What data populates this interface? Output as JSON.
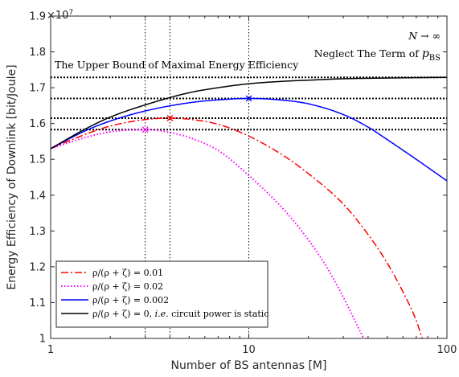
{
  "chart_data": {
    "type": "line",
    "xlabel": "Number of BS antennas [M]",
    "ylabel": "Energy Efficiency of Downlink [bit/Joule]",
    "xscale": "log",
    "xlim": [
      1,
      100
    ],
    "ylim": [
      1.0,
      1.9
    ],
    "y_multiplier_label": "×10",
    "y_multiplier_exp": "7",
    "xticks": [
      1,
      10,
      100
    ],
    "xtick_labels": [
      "1",
      "10",
      "100"
    ],
    "yticks": [
      1.0,
      1.1,
      1.2,
      1.3,
      1.4,
      1.5,
      1.6,
      1.7,
      1.8,
      1.9
    ],
    "ytick_labels": [
      "1",
      "1.1",
      "1.2",
      "1.3",
      "1.4",
      "1.5",
      "1.6",
      "1.7",
      "1.8",
      "1.9"
    ],
    "grid": false,
    "legend_position": "bottom-left",
    "series": [
      {
        "name": "ρ/(ρ + ζ) = 0.01",
        "color": "#ff0000",
        "style": "dashdot",
        "peak": {
          "x": 4,
          "y": 1.615
        },
        "x": [
          1,
          1.5,
          2,
          3,
          4,
          5,
          7,
          10,
          15,
          20,
          30,
          40,
          50,
          60,
          70,
          75
        ],
        "y": [
          1.53,
          1.57,
          1.593,
          1.611,
          1.615,
          1.612,
          1.598,
          1.565,
          1.51,
          1.46,
          1.375,
          1.29,
          1.21,
          1.13,
          1.05,
          1.0
        ]
      },
      {
        "name": "ρ/(ρ + ζ) = 0.02",
        "color": "#ff00ff",
        "style": "dotted",
        "peak": {
          "x": 3,
          "y": 1.583
        },
        "x": [
          1,
          1.5,
          2,
          3,
          4,
          5,
          7,
          10,
          15,
          20,
          25,
          30,
          35,
          38
        ],
        "y": [
          1.53,
          1.561,
          1.577,
          1.583,
          1.575,
          1.561,
          1.525,
          1.455,
          1.36,
          1.275,
          1.195,
          1.115,
          1.04,
          1.0
        ]
      },
      {
        "name": "ρ/(ρ + ζ) = 0.002",
        "color": "#0000ff",
        "style": "solid",
        "peak": {
          "x": 10,
          "y": 1.67
        },
        "x": [
          1,
          1.5,
          2,
          3,
          5,
          7,
          10,
          15,
          20,
          30,
          40,
          50,
          70,
          100
        ],
        "y": [
          1.53,
          1.58,
          1.607,
          1.635,
          1.658,
          1.666,
          1.67,
          1.665,
          1.655,
          1.625,
          1.59,
          1.555,
          1.5,
          1.44
        ]
      },
      {
        "name": "ρ/(ρ + ζ) = 0, i.e. circuit power is static",
        "color": "#000000",
        "style": "solid",
        "x": [
          1,
          1.5,
          2,
          3,
          5,
          7,
          10,
          15,
          20,
          30,
          50,
          70,
          100
        ],
        "y": [
          1.53,
          1.585,
          1.618,
          1.652,
          1.686,
          1.7,
          1.711,
          1.718,
          1.721,
          1.725,
          1.727,
          1.728,
          1.729
        ]
      }
    ],
    "reference_lines": {
      "horizontal_y": [
        1.729,
        1.67,
        1.615,
        1.583
      ],
      "vertical_x": [
        3,
        4,
        10
      ]
    },
    "annotations": {
      "upper_bound": "The Upper Bound of Maximal Energy Efficiency",
      "n_infinity": "N → ∞",
      "neglect_prefix": "Neglect The Term of ",
      "neglect_symbol": "p",
      "neglect_subscript": "BS"
    },
    "legend": [
      {
        "main": "ρ/(ρ + ζ) = 0.01",
        "tail": ""
      },
      {
        "main": "ρ/(ρ + ζ) = 0.02",
        "tail": ""
      },
      {
        "main": "ρ/(ρ + ζ) = 0.002",
        "tail": ""
      },
      {
        "main": "ρ/(ρ + ζ) = 0, ",
        "italic": "i.e.",
        "tail": " circuit power is static"
      }
    ]
  }
}
